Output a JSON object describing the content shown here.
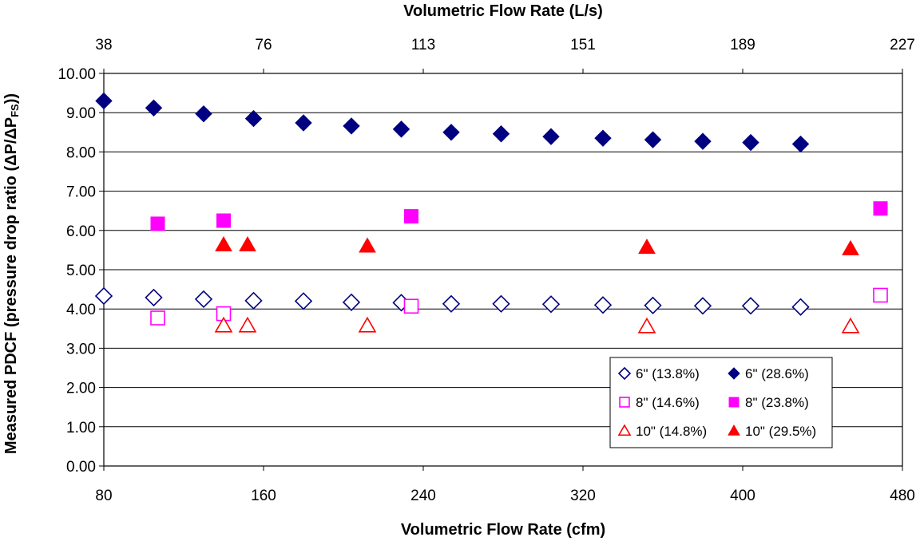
{
  "chart_data": {
    "type": "scatter",
    "title": "",
    "xlabel": "Volumetric Flow Rate (cfm)",
    "x2label": "Volumetric Flow Rate (L/s)",
    "ylabel": "Measured PDCF (pressure drop ratio (ΔP/ΔP",
    "ylabel_sub": "FS",
    "ylabel_end": "))",
    "xlim": [
      80,
      480
    ],
    "ylim": [
      0,
      10
    ],
    "x_ticks": [
      "80",
      "160",
      "240",
      "320",
      "400",
      "480"
    ],
    "x_tick_values": [
      80,
      160,
      240,
      320,
      400,
      480
    ],
    "x2_ticks": [
      "38",
      "76",
      "113",
      "151",
      "189",
      "227"
    ],
    "y_ticks": [
      "0.00",
      "1.00",
      "2.00",
      "3.00",
      "4.00",
      "5.00",
      "6.00",
      "7.00",
      "8.00",
      "9.00",
      "10.00"
    ],
    "y_tick_values": [
      0,
      1,
      2,
      3,
      4,
      5,
      6,
      7,
      8,
      9,
      10
    ],
    "grid": "horizontal",
    "legend_position": "bottom-right",
    "series": [
      {
        "name": "6\" (13.8%)",
        "marker": "diamond",
        "filled": false,
        "color": "#000080",
        "points": [
          [
            80,
            4.33
          ],
          [
            105,
            4.29
          ],
          [
            130,
            4.25
          ],
          [
            155,
            4.21
          ],
          [
            180,
            4.2
          ],
          [
            204,
            4.17
          ],
          [
            229,
            4.16
          ],
          [
            254,
            4.13
          ],
          [
            279,
            4.13
          ],
          [
            304,
            4.12
          ],
          [
            330,
            4.1
          ],
          [
            355,
            4.09
          ],
          [
            380,
            4.08
          ],
          [
            404,
            4.08
          ],
          [
            429,
            4.05
          ]
        ]
      },
      {
        "name": "6\" (28.6%)",
        "marker": "diamond",
        "filled": true,
        "color": "#000080",
        "points": [
          [
            80,
            9.3
          ],
          [
            105,
            9.12
          ],
          [
            130,
            8.97
          ],
          [
            155,
            8.85
          ],
          [
            180,
            8.74
          ],
          [
            204,
            8.66
          ],
          [
            229,
            8.58
          ],
          [
            254,
            8.5
          ],
          [
            279,
            8.46
          ],
          [
            304,
            8.39
          ],
          [
            330,
            8.35
          ],
          [
            355,
            8.31
          ],
          [
            380,
            8.27
          ],
          [
            404,
            8.24
          ],
          [
            429,
            8.2
          ]
        ]
      },
      {
        "name": "8\" (14.6%)",
        "marker": "square",
        "filled": false,
        "color": "#ff00ff",
        "points": [
          [
            107,
            3.77
          ],
          [
            140,
            3.88
          ],
          [
            234,
            4.07
          ],
          [
            469,
            4.35
          ]
        ]
      },
      {
        "name": "8\" (23.8%)",
        "marker": "square",
        "filled": true,
        "color": "#ff00ff",
        "points": [
          [
            107,
            6.17
          ],
          [
            140,
            6.25
          ],
          [
            234,
            6.36
          ],
          [
            469,
            6.56
          ]
        ]
      },
      {
        "name": "10\" (14.8%)",
        "marker": "triangle",
        "filled": false,
        "color": "#ff0000",
        "points": [
          [
            140,
            3.57
          ],
          [
            152,
            3.57
          ],
          [
            212,
            3.57
          ],
          [
            352,
            3.55
          ],
          [
            454,
            3.55
          ]
        ]
      },
      {
        "name": "10\" (29.5%)",
        "marker": "triangle",
        "filled": true,
        "color": "#ff0000",
        "points": [
          [
            140,
            5.63
          ],
          [
            152,
            5.63
          ],
          [
            212,
            5.6
          ],
          [
            352,
            5.57
          ],
          [
            454,
            5.53
          ]
        ]
      }
    ]
  }
}
